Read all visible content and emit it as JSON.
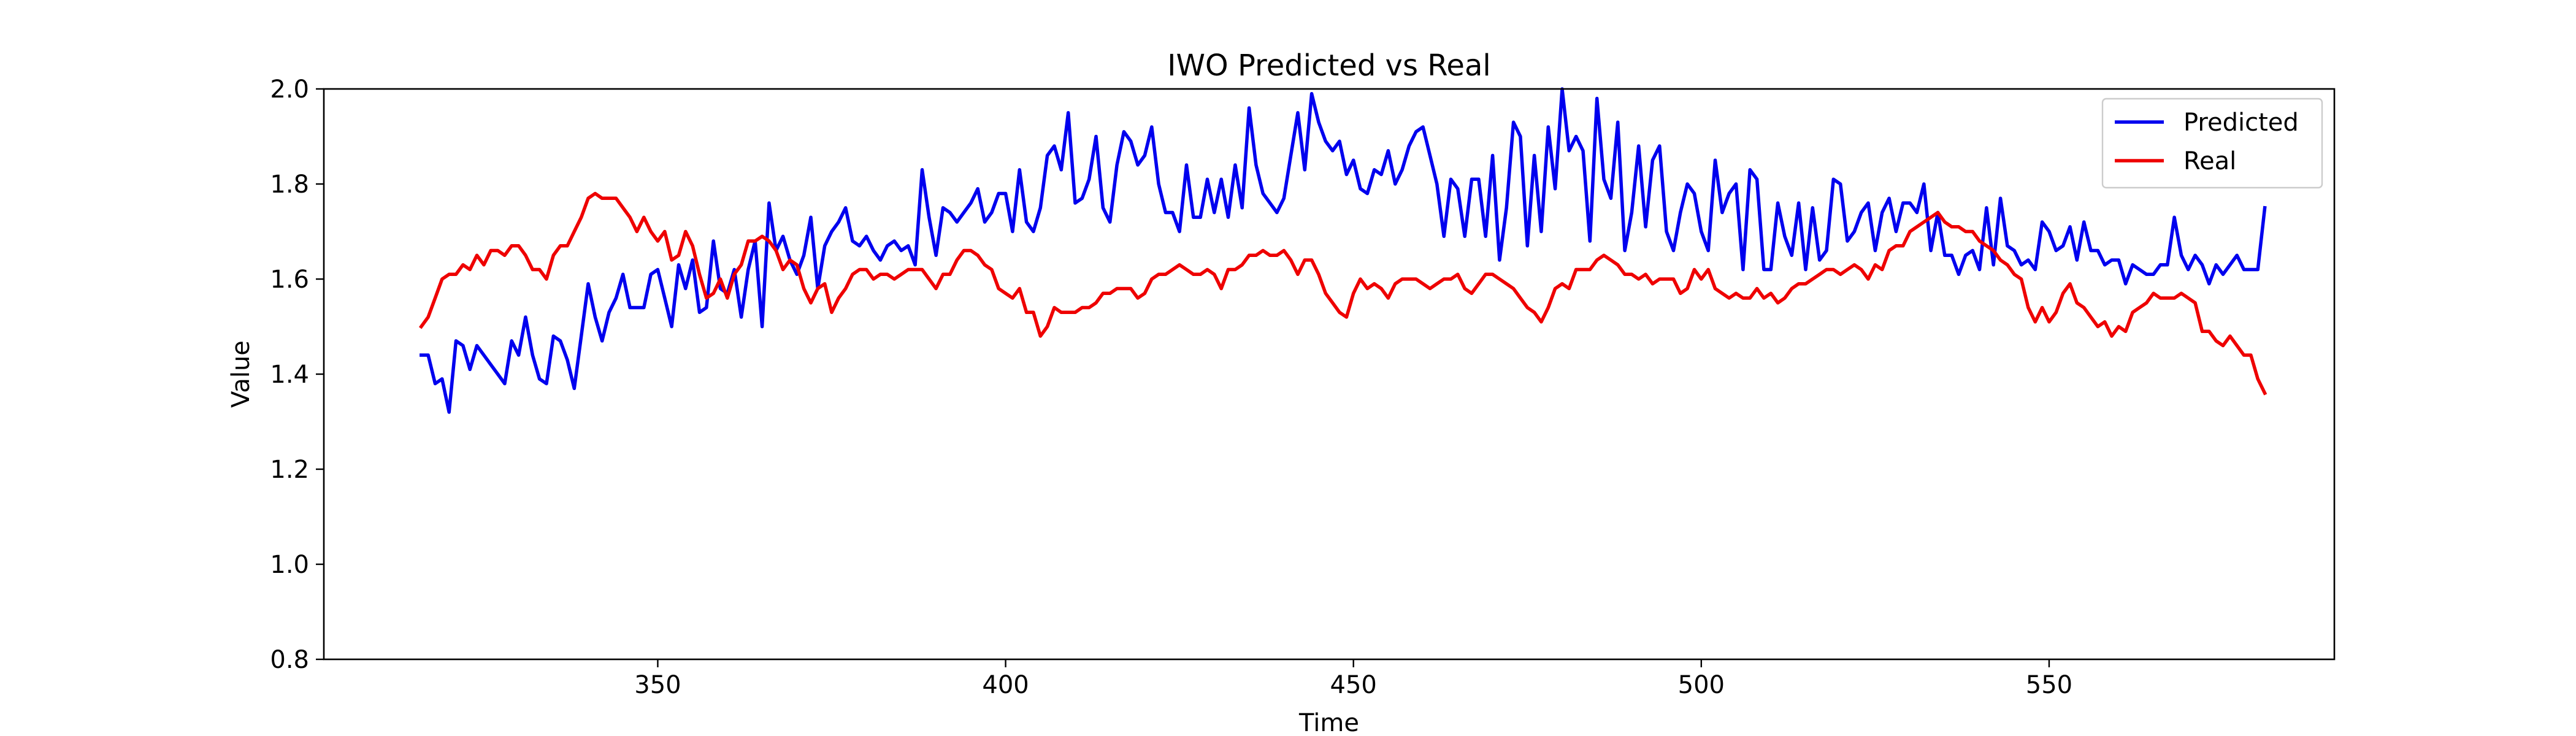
{
  "chart_data": {
    "type": "line",
    "title": "IWO Predicted vs Real",
    "xlabel": "Time",
    "ylabel": "Value",
    "xlim": [
      302,
      591
    ],
    "ylim": [
      0.8,
      2.0
    ],
    "x_ticks": [
      350,
      400,
      450,
      500,
      550
    ],
    "y_ticks": [
      0.8,
      1.0,
      1.2,
      1.4,
      1.6,
      1.8,
      2.0
    ],
    "x_tick_labels": [
      "350",
      "400",
      "450",
      "500",
      "550"
    ],
    "y_tick_labels": [
      "0.8",
      "1.0",
      "1.2",
      "1.4",
      "1.6",
      "1.8",
      "2.0"
    ],
    "grid": false,
    "legend_position": "top-right",
    "x_start": 316,
    "x_step": 1,
    "series": [
      {
        "name": "Predicted",
        "color": "#0000ee",
        "values": [
          1.44,
          1.44,
          1.38,
          1.39,
          1.32,
          1.47,
          1.46,
          1.41,
          1.46,
          1.44,
          1.42,
          1.4,
          1.38,
          1.47,
          1.44,
          1.52,
          1.44,
          1.39,
          1.38,
          1.48,
          1.47,
          1.43,
          1.37,
          1.48,
          1.59,
          1.52,
          1.47,
          1.53,
          1.56,
          1.61,
          1.54,
          1.54,
          1.54,
          1.61,
          1.62,
          1.56,
          1.5,
          1.63,
          1.58,
          1.64,
          1.53,
          1.54,
          1.68,
          1.58,
          1.57,
          1.62,
          1.52,
          1.62,
          1.68,
          1.5,
          1.76,
          1.66,
          1.69,
          1.64,
          1.61,
          1.65,
          1.73,
          1.58,
          1.67,
          1.7,
          1.72,
          1.75,
          1.68,
          1.67,
          1.69,
          1.66,
          1.64,
          1.67,
          1.68,
          1.66,
          1.67,
          1.63,
          1.83,
          1.73,
          1.65,
          1.75,
          1.74,
          1.72,
          1.74,
          1.76,
          1.79,
          1.72,
          1.74,
          1.78,
          1.78,
          1.7,
          1.83,
          1.72,
          1.7,
          1.75,
          1.86,
          1.88,
          1.83,
          1.95,
          1.76,
          1.77,
          1.81,
          1.9,
          1.75,
          1.72,
          1.84,
          1.91,
          1.89,
          1.84,
          1.86,
          1.92,
          1.8,
          1.74,
          1.74,
          1.7,
          1.84,
          1.73,
          1.73,
          1.81,
          1.74,
          1.81,
          1.73,
          1.84,
          1.75,
          1.96,
          1.84,
          1.78,
          1.76,
          1.74,
          1.77,
          1.86,
          1.95,
          1.83,
          1.99,
          1.93,
          1.89,
          1.87,
          1.89,
          1.82,
          1.85,
          1.79,
          1.78,
          1.83,
          1.82,
          1.87,
          1.8,
          1.83,
          1.88,
          1.91,
          1.92,
          1.86,
          1.8,
          1.69,
          1.81,
          1.79,
          1.69,
          1.81,
          1.81,
          1.69,
          1.86,
          1.64,
          1.75,
          1.93,
          1.9,
          1.67,
          1.86,
          1.7,
          1.92,
          1.79,
          2.0,
          1.87,
          1.9,
          1.87,
          1.68,
          1.98,
          1.81,
          1.77,
          1.93,
          1.66,
          1.74,
          1.88,
          1.71,
          1.85,
          1.88,
          1.7,
          1.66,
          1.74,
          1.8,
          1.78,
          1.7,
          1.66,
          1.85,
          1.74,
          1.78,
          1.8,
          1.62,
          1.83,
          1.81,
          1.62,
          1.62,
          1.76,
          1.69,
          1.65,
          1.76,
          1.62,
          1.75,
          1.64,
          1.66,
          1.81,
          1.8,
          1.68,
          1.7,
          1.74,
          1.76,
          1.66,
          1.74,
          1.77,
          1.7,
          1.76,
          1.76,
          1.74,
          1.8,
          1.66,
          1.74,
          1.65,
          1.65,
          1.61,
          1.65,
          1.66,
          1.62,
          1.75,
          1.63,
          1.77,
          1.67,
          1.66,
          1.63,
          1.64,
          1.62,
          1.72,
          1.7,
          1.66,
          1.67,
          1.71,
          1.64,
          1.72,
          1.66,
          1.66,
          1.63,
          1.64,
          1.64,
          1.59,
          1.63,
          1.62,
          1.61,
          1.61,
          1.63,
          1.63,
          1.73,
          1.65,
          1.62,
          1.65,
          1.63,
          1.59,
          1.63,
          1.61,
          1.63,
          1.65,
          1.62,
          1.62,
          1.62,
          1.75
        ]
      },
      {
        "name": "Real",
        "color": "#ee0000",
        "values": [
          1.5,
          1.52,
          1.56,
          1.6,
          1.61,
          1.61,
          1.63,
          1.62,
          1.65,
          1.63,
          1.66,
          1.66,
          1.65,
          1.67,
          1.67,
          1.65,
          1.62,
          1.62,
          1.6,
          1.65,
          1.67,
          1.67,
          1.7,
          1.73,
          1.77,
          1.78,
          1.77,
          1.77,
          1.77,
          1.75,
          1.73,
          1.7,
          1.73,
          1.7,
          1.68,
          1.7,
          1.64,
          1.65,
          1.7,
          1.67,
          1.61,
          1.56,
          1.57,
          1.6,
          1.56,
          1.61,
          1.63,
          1.68,
          1.68,
          1.69,
          1.68,
          1.66,
          1.62,
          1.64,
          1.63,
          1.58,
          1.55,
          1.58,
          1.59,
          1.53,
          1.56,
          1.58,
          1.61,
          1.62,
          1.62,
          1.6,
          1.61,
          1.61,
          1.6,
          1.61,
          1.62,
          1.62,
          1.62,
          1.6,
          1.58,
          1.61,
          1.61,
          1.64,
          1.66,
          1.66,
          1.65,
          1.63,
          1.62,
          1.58,
          1.57,
          1.56,
          1.58,
          1.53,
          1.53,
          1.48,
          1.5,
          1.54,
          1.53,
          1.53,
          1.53,
          1.54,
          1.54,
          1.55,
          1.57,
          1.57,
          1.58,
          1.58,
          1.58,
          1.56,
          1.57,
          1.6,
          1.61,
          1.61,
          1.62,
          1.63,
          1.62,
          1.61,
          1.61,
          1.62,
          1.61,
          1.58,
          1.62,
          1.62,
          1.63,
          1.65,
          1.65,
          1.66,
          1.65,
          1.65,
          1.66,
          1.64,
          1.61,
          1.64,
          1.64,
          1.61,
          1.57,
          1.55,
          1.53,
          1.52,
          1.57,
          1.6,
          1.58,
          1.59,
          1.58,
          1.56,
          1.59,
          1.6,
          1.6,
          1.6,
          1.59,
          1.58,
          1.59,
          1.6,
          1.6,
          1.61,
          1.58,
          1.57,
          1.59,
          1.61,
          1.61,
          1.6,
          1.59,
          1.58,
          1.56,
          1.54,
          1.53,
          1.51,
          1.54,
          1.58,
          1.59,
          1.58,
          1.62,
          1.62,
          1.62,
          1.64,
          1.65,
          1.64,
          1.63,
          1.61,
          1.61,
          1.6,
          1.61,
          1.59,
          1.6,
          1.6,
          1.6,
          1.57,
          1.58,
          1.62,
          1.6,
          1.62,
          1.58,
          1.57,
          1.56,
          1.57,
          1.56,
          1.56,
          1.58,
          1.56,
          1.57,
          1.55,
          1.56,
          1.58,
          1.59,
          1.59,
          1.6,
          1.61,
          1.62,
          1.62,
          1.61,
          1.62,
          1.63,
          1.62,
          1.6,
          1.63,
          1.62,
          1.66,
          1.67,
          1.67,
          1.7,
          1.71,
          1.72,
          1.73,
          1.74,
          1.72,
          1.71,
          1.71,
          1.7,
          1.7,
          1.68,
          1.67,
          1.66,
          1.64,
          1.63,
          1.61,
          1.6,
          1.54,
          1.51,
          1.54,
          1.51,
          1.53,
          1.57,
          1.59,
          1.55,
          1.54,
          1.52,
          1.5,
          1.51,
          1.48,
          1.5,
          1.49,
          1.53,
          1.54,
          1.55,
          1.57,
          1.56,
          1.56,
          1.56,
          1.57,
          1.56,
          1.55,
          1.49,
          1.49,
          1.47,
          1.46,
          1.48,
          1.46,
          1.44,
          1.44,
          1.39,
          1.36
        ]
      }
    ]
  }
}
